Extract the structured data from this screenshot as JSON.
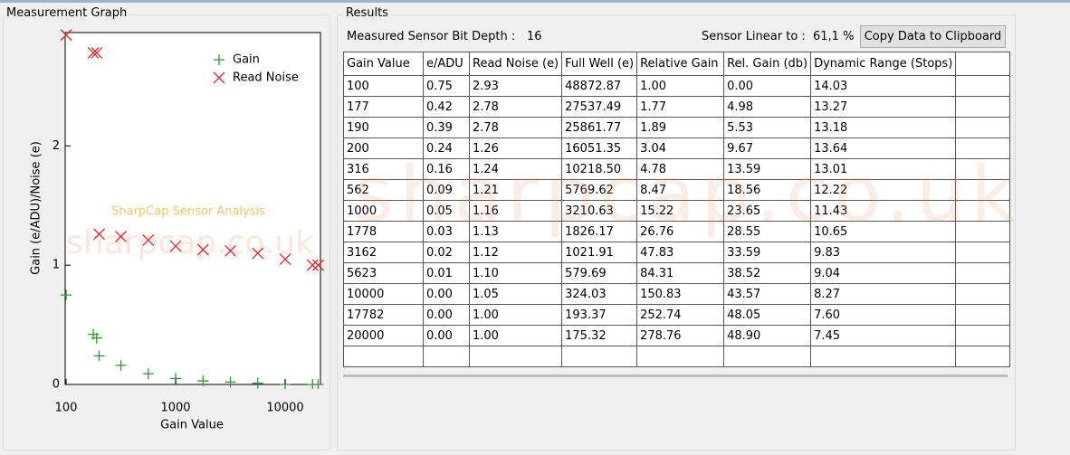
{
  "window": {
    "graph_title": "Measurement Graph",
    "results_title": "Results"
  },
  "chart_data": {
    "type": "scatter",
    "xlabel": "Gain Value",
    "ylabel": "Gain (e/ADU)/Noise (e)",
    "watermark": "SharpCap Sensor Analysis",
    "watermark2": "sharpcap.co.uk",
    "log_x": true,
    "xlim": [
      98,
      21000
    ],
    "ylim": [
      0,
      2.95
    ],
    "xticks": [
      100,
      1000,
      10000
    ],
    "yticks": [
      0,
      1,
      2
    ],
    "legend": "upper right",
    "x": [
      100,
      177,
      190,
      200,
      316,
      562,
      1000,
      1778,
      3162,
      5623,
      10000,
      17782,
      20000
    ],
    "series": [
      {
        "name": "Gain",
        "color": "#2e9b2e",
        "marker": "plus",
        "values": [
          0.75,
          0.42,
          0.39,
          0.24,
          0.16,
          0.09,
          0.05,
          0.03,
          0.02,
          0.01,
          0.0,
          0.0,
          0.0
        ]
      },
      {
        "name": "Read Noise",
        "color": "#e02828",
        "marker": "cross",
        "values": [
          2.93,
          2.78,
          2.78,
          1.26,
          1.24,
          1.21,
          1.16,
          1.13,
          1.12,
          1.1,
          1.05,
          1.0,
          1.0
        ]
      }
    ]
  },
  "results": {
    "bit_depth_label": "Measured Sensor Bit Depth :",
    "bit_depth": "16",
    "linear_label": "Sensor Linear to :",
    "linear": "61,1 %",
    "copy_button": "Copy Data to Clipboard",
    "watermark": "sharpcap.co.uk",
    "columns": [
      "Gain Value",
      "e/ADU",
      "Read Noise (e)",
      "Full Well (e)",
      "Relative Gain",
      "Rel. Gain (db)",
      "Dynamic Range (Stops)"
    ],
    "rows": [
      [
        "100",
        "0.75",
        "2.93",
        "48872.87",
        "1.00",
        "0.00",
        "14.03"
      ],
      [
        "177",
        "0.42",
        "2.78",
        "27537.49",
        "1.77",
        "4.98",
        "13.27"
      ],
      [
        "190",
        "0.39",
        "2.78",
        "25861.77",
        "1.89",
        "5.53",
        "13.18"
      ],
      [
        "200",
        "0.24",
        "1.26",
        "16051.35",
        "3.04",
        "9.67",
        "13.64"
      ],
      [
        "316",
        "0.16",
        "1.24",
        "10218.50",
        "4.78",
        "13.59",
        "13.01"
      ],
      [
        "562",
        "0.09",
        "1.21",
        "5769.62",
        "8.47",
        "18.56",
        "12.22"
      ],
      [
        "1000",
        "0.05",
        "1.16",
        "3210.63",
        "15.22",
        "23.65",
        "11.43"
      ],
      [
        "1778",
        "0.03",
        "1.13",
        "1826.17",
        "26.76",
        "28.55",
        "10.65"
      ],
      [
        "3162",
        "0.02",
        "1.12",
        "1021.91",
        "47.83",
        "33.59",
        "9.83"
      ],
      [
        "5623",
        "0.01",
        "1.10",
        "579.69",
        "84.31",
        "38.52",
        "9.04"
      ],
      [
        "10000",
        "0.00",
        "1.05",
        "324.03",
        "150.83",
        "43.57",
        "8.27"
      ],
      [
        "17782",
        "0.00",
        "1.00",
        "193.37",
        "252.74",
        "48.05",
        "7.60"
      ],
      [
        "20000",
        "0.00",
        "1.00",
        "175.32",
        "278.76",
        "48.90",
        "7.45"
      ]
    ]
  }
}
